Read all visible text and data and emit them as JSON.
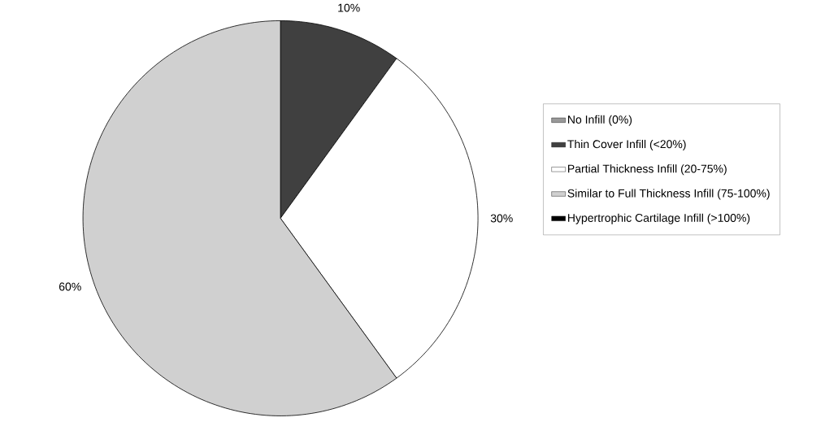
{
  "chart_data": {
    "type": "pie",
    "categories": [
      "No Infill (0%)",
      "Thin Cover Infill (<20%)",
      "Partial Thickness Infill (20-75%)",
      "Similar to Full Thickness Infill (75-100%)",
      "Hypertrophic Cartilage Infill (>100%)"
    ],
    "values": [
      0,
      10,
      30,
      60,
      0
    ],
    "colors": [
      "#999999",
      "#404040",
      "#ffffff",
      "#d0d0d0",
      "#000000"
    ],
    "value_labels": [
      null,
      "10%",
      "30%",
      "60%",
      null
    ],
    "legend": "right"
  }
}
